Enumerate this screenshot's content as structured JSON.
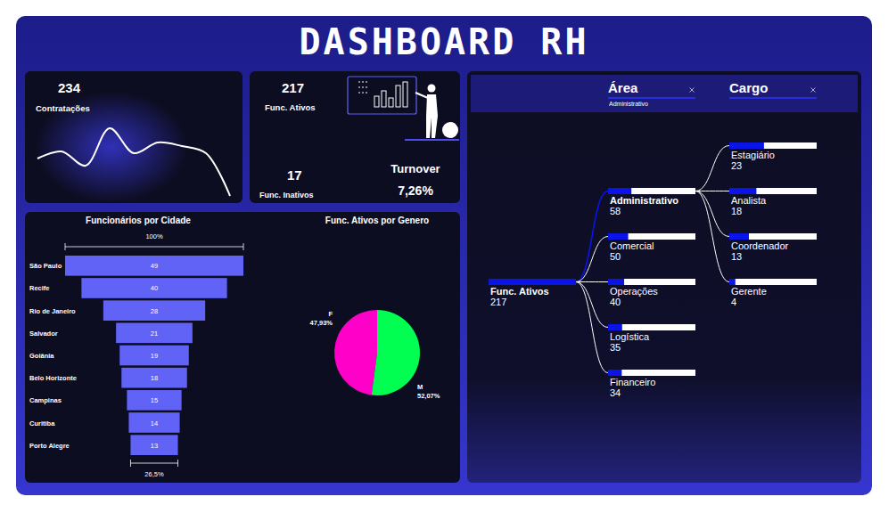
{
  "title": "DASHBOARD RH",
  "kpis": [
    {
      "label": "Contratações",
      "value": 234
    },
    {
      "label": "Func. Ativos",
      "value": 217
    },
    {
      "label": "Func. Inativos",
      "value": 17
    },
    {
      "label": "Turnover",
      "value": "7,26%"
    }
  ],
  "chart_data": [
    {
      "type": "line",
      "categories": [
        null,
        null,
        null,
        null,
        null,
        null,
        null,
        null,
        null
      ],
      "values": [
        24,
        28,
        20,
        41,
        27,
        33,
        31,
        27,
        3
      ],
      "color": "#ffffff",
      "tick_labels": false
    },
    {
      "type": "funnel",
      "title": "Funcionários por Cidade",
      "categories": [
        "São Paulo",
        "Recife",
        "Rio de Janeiro",
        "Salvador",
        "Goiânia",
        "Belo Horizonte",
        "Campinas",
        "Curitiba",
        "Porto Alegre"
      ],
      "values": [
        49,
        40,
        28,
        21,
        19,
        18,
        15,
        14,
        13
      ],
      "color": "#6063f5",
      "data_labels": true,
      "annotations": [
        "100%",
        "26,5%"
      ]
    },
    {
      "type": "pie",
      "title": "Func. Ativos por Genero",
      "categories": [
        "F",
        "M"
      ],
      "values": [
        47.93,
        52.07
      ],
      "value_labels": [
        "47,93%",
        "52,07%"
      ],
      "colors": [
        "#ff00c8",
        "#00ff50"
      ],
      "data_labels": true
    },
    {
      "type": "tree",
      "color": "#0a14e6",
      "levels": [
        {
          "name": "Área",
          "filter": "Administrativo"
        },
        {
          "name": "Cargo"
        }
      ],
      "root": {
        "name": "Func. Ativos",
        "value": 217,
        "children": [
          {
            "name": "Administrativo",
            "value": 58,
            "children": [
              {
                "name": "Estagiário",
                "value": 23
              },
              {
                "name": "Analista",
                "value": 18
              },
              {
                "name": "Coordenador",
                "value": 13
              },
              {
                "name": "Gerente",
                "value": 4
              }
            ]
          },
          {
            "name": "Comercial",
            "value": 50
          },
          {
            "name": "Operações",
            "value": 40
          },
          {
            "name": "Logística",
            "value": 35
          },
          {
            "name": "Financeiro",
            "value": 34
          }
        ]
      }
    }
  ]
}
